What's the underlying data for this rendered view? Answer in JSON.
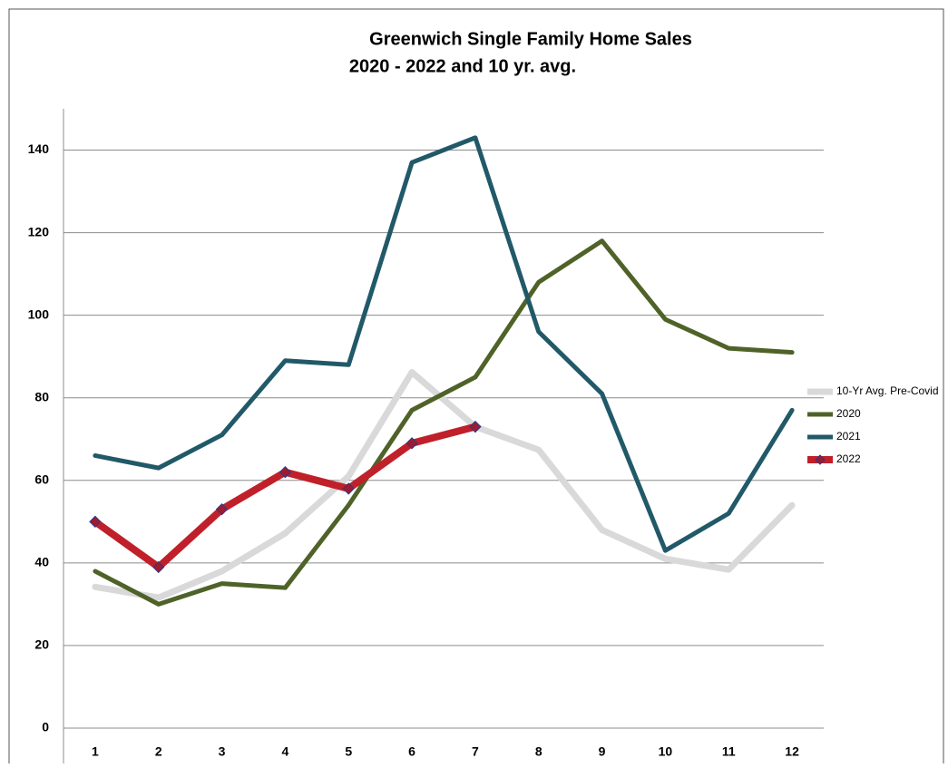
{
  "chart_data": {
    "type": "line",
    "title": "Greenwich Single Family Home Sales",
    "subtitle": "2020 - 2022 and 10 yr. avg.",
    "categories": [
      "1",
      "2",
      "3",
      "4",
      "5",
      "6",
      "7",
      "8",
      "9",
      "10",
      "11",
      "12"
    ],
    "series": [
      {
        "name": "10-Yr Avg. Pre-Covid",
        "color": "#d9d9d9",
        "values": [
          34.2,
          31.6,
          38,
          47.2,
          61,
          86.2,
          73,
          67.4,
          48,
          41,
          38.4,
          54
        ]
      },
      {
        "name": "2020",
        "color": "#4f6228",
        "values": [
          38,
          30,
          35,
          34,
          54,
          77,
          85,
          108,
          118,
          99,
          92,
          91
        ]
      },
      {
        "name": "2021",
        "color": "#215968",
        "values": [
          66,
          63,
          71,
          89,
          88,
          137,
          143,
          96,
          81,
          43,
          52,
          77
        ]
      },
      {
        "name": "2022",
        "color": "#c0202a",
        "marker": "diamond",
        "values": [
          50,
          39,
          53,
          62,
          58,
          69,
          73,
          null,
          null,
          null,
          null,
          null
        ]
      }
    ],
    "ylim": [
      0,
      150
    ],
    "yticks": [
      0,
      20,
      40,
      60,
      80,
      100,
      120,
      140
    ],
    "grid": true,
    "legend": "right"
  }
}
